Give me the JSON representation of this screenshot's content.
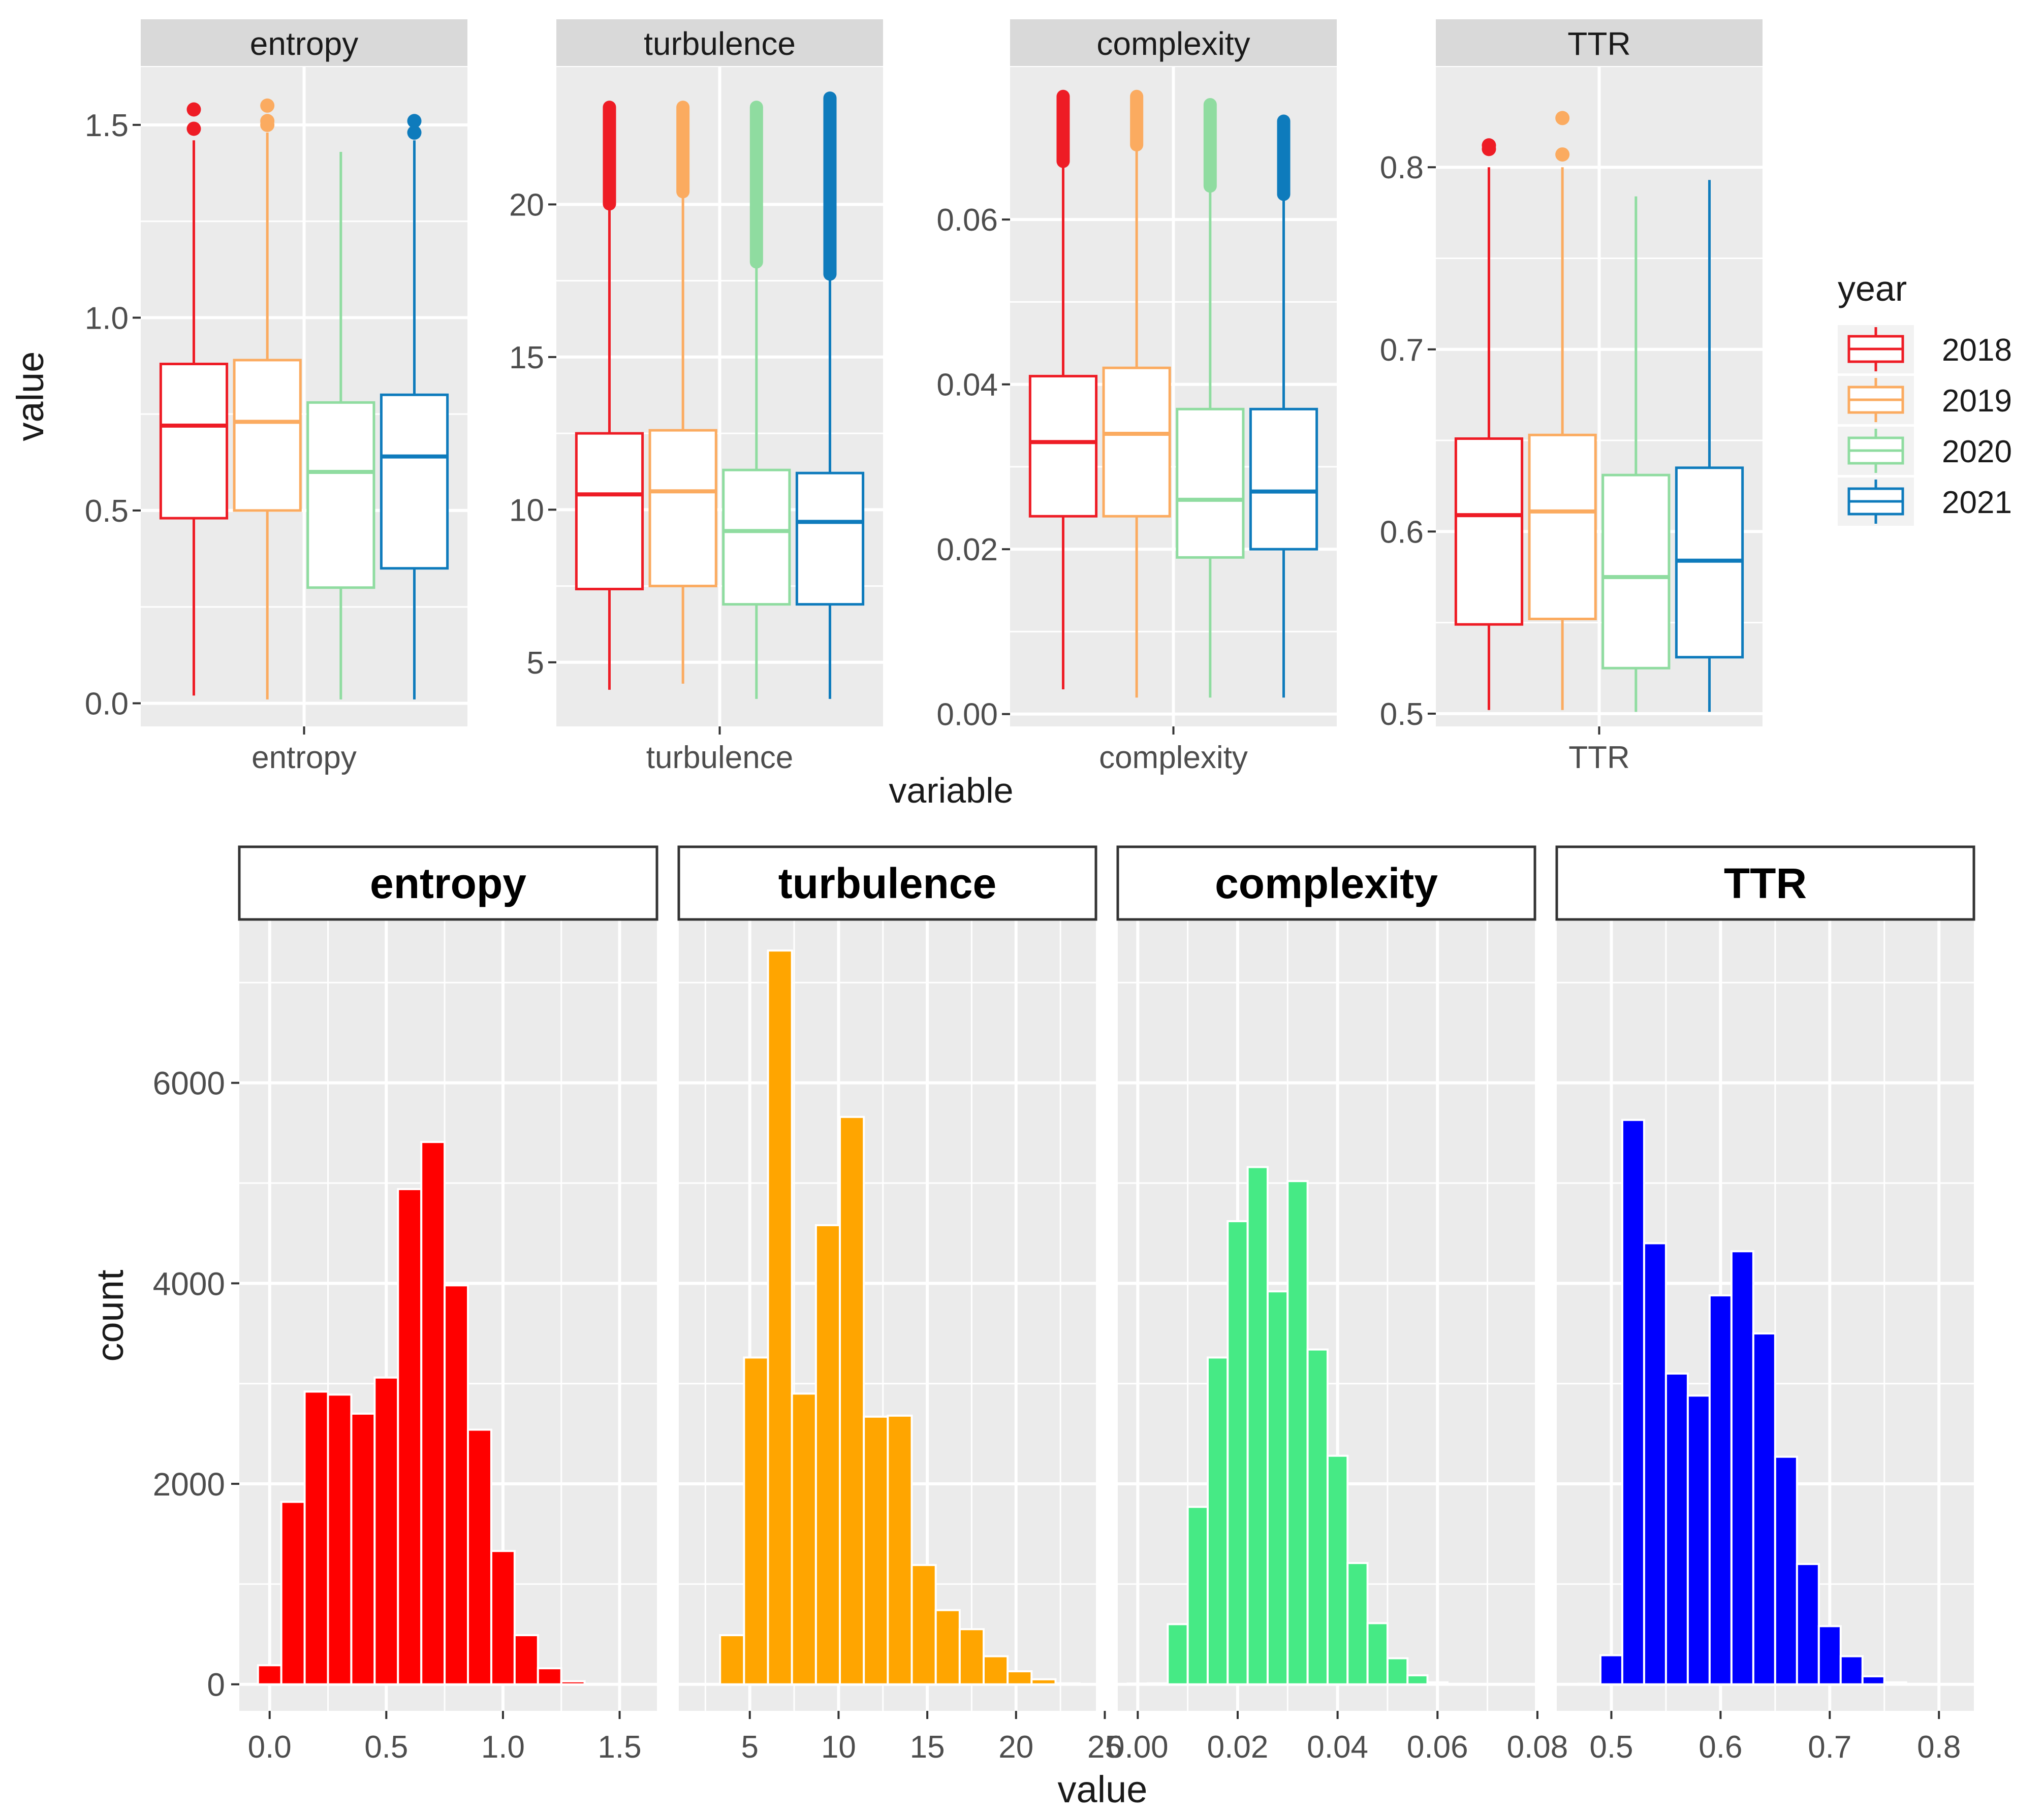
{
  "top": {
    "ylabel": "value",
    "xlabel": "variable",
    "legend": {
      "title": "year",
      "items": [
        "2018",
        "2019",
        "2020",
        "2021"
      ],
      "colors": [
        "#ee1c25",
        "#fbab60",
        "#8fdca0",
        "#0e7bbc"
      ]
    }
  },
  "bottom": {
    "ylabel": "count",
    "xlabel": "value"
  },
  "chart_data": [
    {
      "type": "boxplot",
      "panel": "entropy",
      "strip": "entropy",
      "category_label": "entropy",
      "ylim": [
        -0.06,
        1.65
      ],
      "yticks": [
        0.0,
        0.5,
        1.0,
        1.5
      ],
      "ytick_labels": [
        "0.0",
        "0.5",
        "1.0",
        "1.5"
      ],
      "series": [
        {
          "name": "2018",
          "q1": 0.48,
          "median": 0.72,
          "q3": 0.88,
          "whisker_low": 0.02,
          "whisker_high": 1.46,
          "outliers": [
            1.49,
            1.54
          ]
        },
        {
          "name": "2019",
          "q1": 0.5,
          "median": 0.73,
          "q3": 0.89,
          "whisker_low": 0.01,
          "whisker_high": 1.48,
          "outliers": [
            1.5,
            1.51,
            1.55
          ]
        },
        {
          "name": "2020",
          "q1": 0.3,
          "median": 0.6,
          "q3": 0.78,
          "whisker_low": 0.01,
          "whisker_high": 1.43,
          "outliers": []
        },
        {
          "name": "2021",
          "q1": 0.35,
          "median": 0.64,
          "q3": 0.8,
          "whisker_low": 0.01,
          "whisker_high": 1.46,
          "outliers": [
            1.48,
            1.51
          ]
        }
      ]
    },
    {
      "type": "boxplot",
      "panel": "turbulence",
      "strip": "turbulence",
      "category_label": "turbulence",
      "ylim": [
        2.9,
        24.5
      ],
      "yticks": [
        5,
        10,
        15,
        20
      ],
      "ytick_labels": [
        "5",
        "10",
        "15",
        "20"
      ],
      "series": [
        {
          "name": "2018",
          "q1": 7.4,
          "median": 10.5,
          "q3": 12.5,
          "whisker_low": 4.1,
          "whisker_high": 20.0,
          "outlier_range": [
            20.0,
            23.2
          ]
        },
        {
          "name": "2019",
          "q1": 7.5,
          "median": 10.6,
          "q3": 12.6,
          "whisker_low": 4.3,
          "whisker_high": 20.4,
          "outlier_range": [
            20.4,
            23.2
          ]
        },
        {
          "name": "2020",
          "q1": 6.9,
          "median": 9.3,
          "q3": 11.3,
          "whisker_low": 3.8,
          "whisker_high": 18.1,
          "outlier_range": [
            18.1,
            23.2
          ]
        },
        {
          "name": "2021",
          "q1": 6.9,
          "median": 9.6,
          "q3": 11.2,
          "whisker_low": 3.8,
          "whisker_high": 17.7,
          "outlier_range": [
            17.7,
            23.5
          ]
        }
      ]
    },
    {
      "type": "boxplot",
      "panel": "complexity",
      "strip": "complexity",
      "category_label": "complexity",
      "ylim": [
        -0.0015,
        0.0785
      ],
      "yticks": [
        0.0,
        0.02,
        0.04,
        0.06
      ],
      "ytick_labels": [
        "0.00",
        "0.02",
        "0.04",
        "0.06"
      ],
      "series": [
        {
          "name": "2018",
          "q1": 0.024,
          "median": 0.033,
          "q3": 0.041,
          "whisker_low": 0.003,
          "whisker_high": 0.067,
          "outlier_range": [
            0.067,
            0.075
          ]
        },
        {
          "name": "2019",
          "q1": 0.024,
          "median": 0.034,
          "q3": 0.042,
          "whisker_low": 0.002,
          "whisker_high": 0.069,
          "outlier_range": [
            0.069,
            0.075
          ]
        },
        {
          "name": "2020",
          "q1": 0.019,
          "median": 0.026,
          "q3": 0.037,
          "whisker_low": 0.002,
          "whisker_high": 0.064,
          "outlier_range": [
            0.064,
            0.074
          ]
        },
        {
          "name": "2021",
          "q1": 0.02,
          "median": 0.027,
          "q3": 0.037,
          "whisker_low": 0.002,
          "whisker_high": 0.063,
          "outlier_range": [
            0.063,
            0.072
          ]
        }
      ]
    },
    {
      "type": "boxplot",
      "panel": "TTR",
      "strip": "TTR",
      "category_label": "TTR",
      "ylim": [
        0.493,
        0.855
      ],
      "yticks": [
        0.5,
        0.6,
        0.7,
        0.8
      ],
      "ytick_labels": [
        "0.5",
        "0.6",
        "0.7",
        "0.8"
      ],
      "series": [
        {
          "name": "2018",
          "q1": 0.549,
          "median": 0.609,
          "q3": 0.651,
          "whisker_low": 0.502,
          "whisker_high": 0.8,
          "outliers": [
            0.81,
            0.812
          ]
        },
        {
          "name": "2019",
          "q1": 0.552,
          "median": 0.611,
          "q3": 0.653,
          "whisker_low": 0.502,
          "whisker_high": 0.8,
          "outliers": [
            0.807,
            0.827
          ]
        },
        {
          "name": "2020",
          "q1": 0.525,
          "median": 0.575,
          "q3": 0.631,
          "whisker_low": 0.501,
          "whisker_high": 0.784,
          "outliers": []
        },
        {
          "name": "2021",
          "q1": 0.531,
          "median": 0.584,
          "q3": 0.635,
          "whisker_low": 0.501,
          "whisker_high": 0.793,
          "outliers": []
        }
      ]
    },
    {
      "type": "bar",
      "subtype": "histogram",
      "panel": "entropy",
      "strip": "entropy",
      "color": "#ff0000",
      "bin_centers": [
        0.0,
        0.1,
        0.2,
        0.3,
        0.4,
        0.5,
        0.6,
        0.7,
        0.8,
        0.9,
        1.0,
        1.1,
        1.2,
        1.3,
        1.4,
        1.5
      ],
      "bin_width": 0.1,
      "values": [
        190,
        1820,
        2920,
        2890,
        2700,
        3060,
        4940,
        5410,
        3980,
        2540,
        1330,
        490,
        160,
        30,
        5,
        2
      ],
      "xlim": [
        -0.13,
        1.66
      ],
      "xticks": [
        0.0,
        0.5,
        1.0,
        1.5
      ],
      "xtick_labels": [
        "0.0",
        "0.5",
        "1.0",
        "1.5"
      ]
    },
    {
      "type": "bar",
      "subtype": "histogram",
      "panel": "turbulence",
      "strip": "turbulence",
      "color": "#ffa500",
      "bin_centers": [
        4.0,
        5.35,
        6.7,
        8.05,
        9.4,
        10.75,
        12.1,
        13.45,
        14.8,
        16.15,
        17.5,
        18.85,
        20.2,
        21.55,
        22.9,
        24.25
      ],
      "bin_width": 1.35,
      "values": [
        490,
        3260,
        7320,
        2900,
        4580,
        5660,
        2670,
        2680,
        1190,
        740,
        550,
        280,
        130,
        50,
        10,
        3
      ],
      "xlim": [
        1.0,
        24.5
      ],
      "xticks": [
        5,
        10,
        15,
        20,
        25
      ],
      "xtick_labels": [
        "5",
        "10",
        "15",
        "20",
        "25"
      ]
    },
    {
      "type": "bar",
      "subtype": "histogram",
      "panel": "complexity",
      "strip": "complexity",
      "color": "#46ea85",
      "bin_centers": [
        0.0,
        0.004,
        0.008,
        0.012,
        0.016,
        0.02,
        0.024,
        0.028,
        0.032,
        0.036,
        0.04,
        0.044,
        0.048,
        0.052,
        0.056,
        0.06,
        0.064,
        0.068,
        0.072,
        0.076
      ],
      "bin_width": 0.004,
      "values": [
        8,
        10,
        600,
        1770,
        3260,
        4620,
        5160,
        3920,
        5020,
        3340,
        2280,
        1210,
        610,
        260,
        90,
        20,
        5,
        3,
        2,
        1
      ],
      "xlim": [
        -0.004,
        0.0795
      ],
      "xticks": [
        0.0,
        0.02,
        0.04,
        0.06,
        0.08
      ],
      "xtick_labels": [
        "0.00",
        "0.02",
        "0.04",
        "0.06",
        "0.08"
      ]
    },
    {
      "type": "bar",
      "subtype": "histogram",
      "panel": "TTR",
      "strip": "TTR",
      "color": "#0000ff",
      "bin_centers": [
        0.48,
        0.5,
        0.52,
        0.54,
        0.56,
        0.58,
        0.6,
        0.62,
        0.64,
        0.66,
        0.68,
        0.7,
        0.72,
        0.74,
        0.76,
        0.78,
        0.8
      ],
      "bin_width": 0.02,
      "values": [
        6,
        290,
        5630,
        4400,
        3100,
        2880,
        3880,
        4320,
        3500,
        2270,
        1200,
        580,
        280,
        80,
        20,
        5,
        3
      ],
      "xlim": [
        0.45,
        0.832
      ],
      "xticks": [
        0.5,
        0.6,
        0.7,
        0.8
      ],
      "xtick_labels": [
        "0.5",
        "0.6",
        "0.7",
        "0.8"
      ]
    }
  ],
  "bottom_axis": {
    "ylim": [
      -265,
      7620
    ],
    "yticks": [
      0,
      2000,
      4000,
      6000
    ],
    "ytick_labels": [
      "0",
      "2000",
      "4000",
      "6000"
    ]
  }
}
